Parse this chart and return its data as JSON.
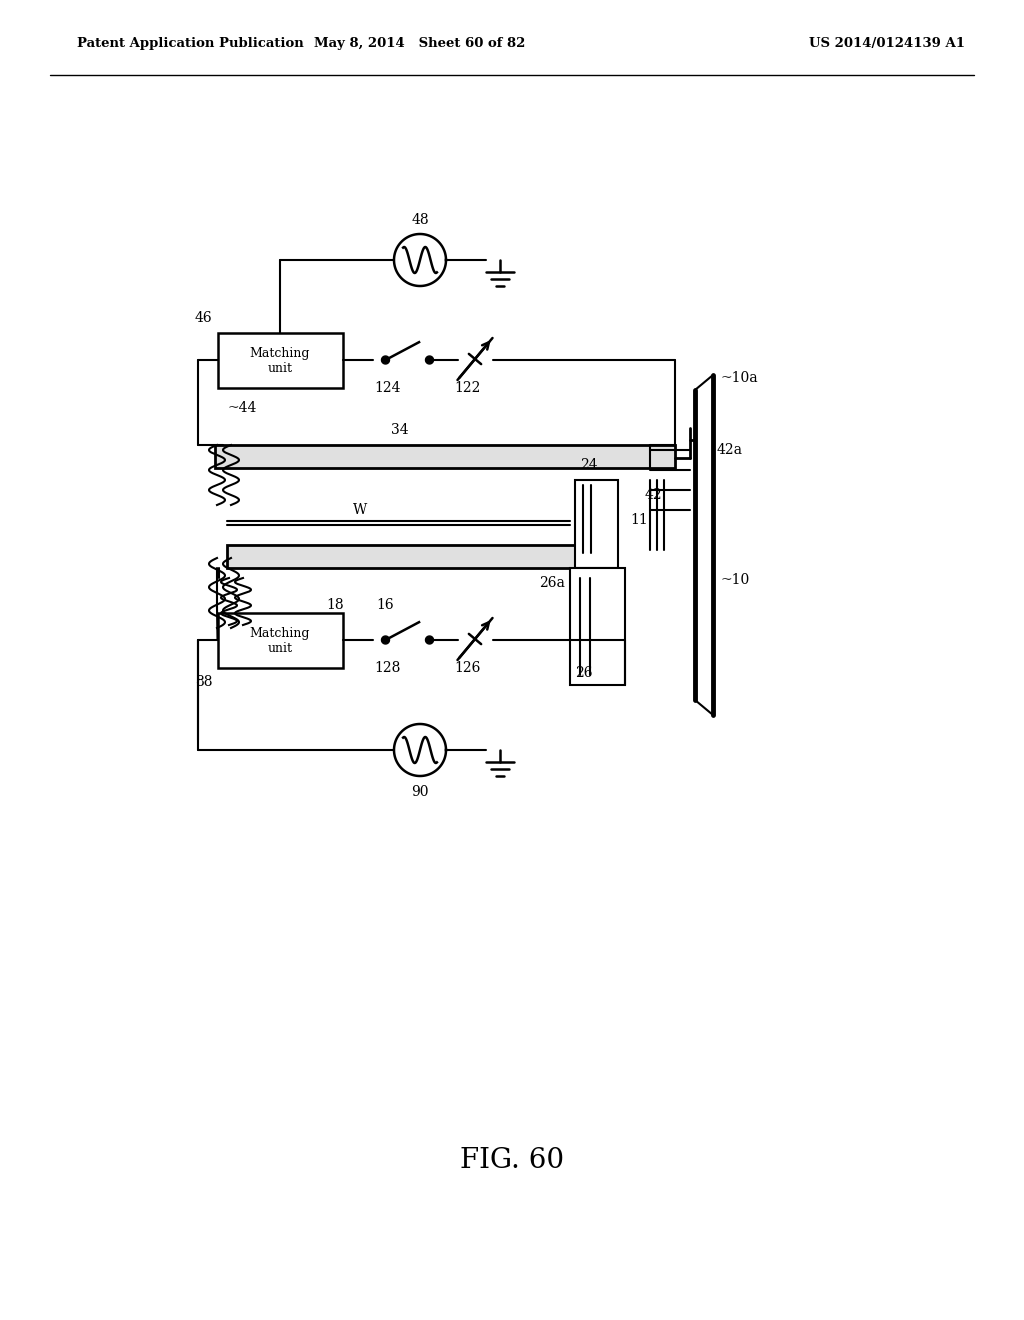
{
  "header_left": "Patent Application Publication",
  "header_mid": "May 8, 2014   Sheet 60 of 82",
  "header_right": "US 2014/0124139 A1",
  "bg_color": "#ffffff",
  "line_color": "#000000",
  "fig_caption": "FIG. 60"
}
